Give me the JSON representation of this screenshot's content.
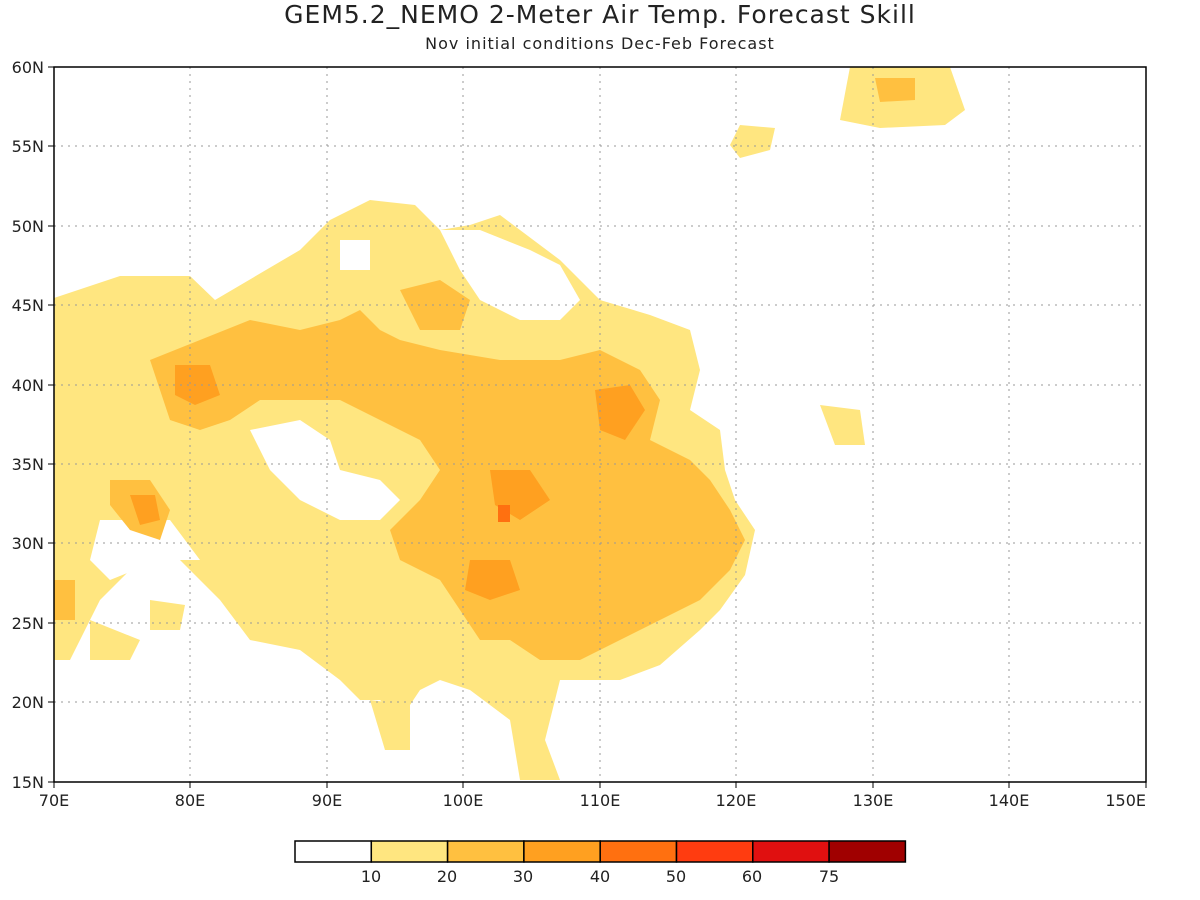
{
  "title": "GEM5.2_NEMO 2-Meter Air Temp. Forecast Skill",
  "subtitle": "Nov initial conditions  Dec-Feb Forecast",
  "map": {
    "lon_range": [
      70,
      150
    ],
    "lat_range": [
      15,
      60
    ],
    "lon_ticks": [
      "70E",
      "80E",
      "90E",
      "100E",
      "110E",
      "120E",
      "130E",
      "140E",
      "150E"
    ],
    "lat_ticks": [
      "60N",
      "55N",
      "50N",
      "45N",
      "40N",
      "35N",
      "30N",
      "25N",
      "20N",
      "15N"
    ],
    "grid": "dotted"
  },
  "colorbar": {
    "labels": [
      "10",
      "20",
      "30",
      "40",
      "50",
      "60",
      "75"
    ],
    "colors": [
      "#ffffff",
      "#ffe680",
      "#ffc040",
      "#ffa020",
      "#ff7010",
      "#ff3c10",
      "#e01010",
      "#a00000"
    ]
  }
}
